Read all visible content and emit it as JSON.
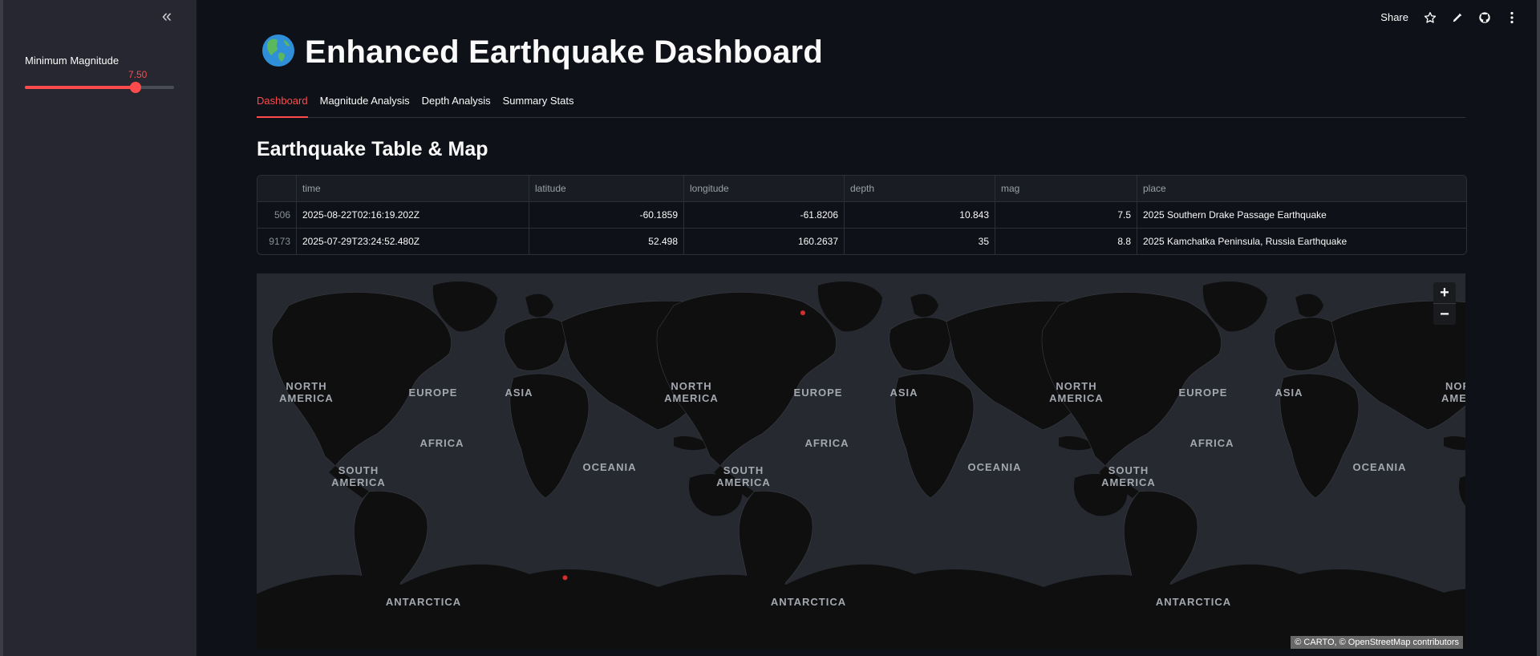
{
  "sidebar": {
    "slider": {
      "label": "Minimum Magnitude",
      "value_text": "7.50",
      "fraction": 0.74
    }
  },
  "header": {
    "share_label": "Share"
  },
  "app": {
    "emoji": "🌎",
    "title": "Enhanced Earthquake Dashboard"
  },
  "tabs": [
    {
      "label": "Dashboard",
      "active": true
    },
    {
      "label": "Magnitude Analysis",
      "active": false
    },
    {
      "label": "Depth Analysis",
      "active": false
    },
    {
      "label": "Summary Stats",
      "active": false
    }
  ],
  "section_title": "Earthquake Table & Map",
  "table": {
    "columns": [
      "",
      "time",
      "latitude",
      "longitude",
      "depth",
      "mag",
      "place"
    ],
    "rows": [
      [
        "506",
        "2025-08-22T02:16:19.202Z",
        "-60.1859",
        "-61.8206",
        "10.843",
        "7.5",
        "2025 Southern Drake Passage Earthquake"
      ],
      [
        "9173",
        "2025-07-29T23:24:52.480Z",
        "52.498",
        "160.2637",
        "35",
        "8.8",
        "2025 Kamchatka Peninsula, Russia Earthquake"
      ]
    ]
  },
  "map": {
    "labels": {
      "north_america_1": "NORTH",
      "north_america_2": "AMERICA",
      "europe": "EUROPE",
      "asia": "ASIA",
      "africa": "AFRICA",
      "south_america_1": "SOUTH",
      "south_america_2": "AMERICA",
      "oceania": "OCEANIA",
      "antarctica": "ANTARCTICA",
      "cut_north": "NORT",
      "cut_america": "AMERI"
    },
    "zoom_in": "+",
    "zoom_out": "−",
    "attribution": "© CARTO, © OpenStreetMap contributors",
    "points": [
      {
        "lat": -60.1859,
        "lon": -61.8206
      },
      {
        "lat": 52.498,
        "lon": 160.2637
      }
    ],
    "colors": {
      "ocean": "#262a30",
      "land": "#0f0f10",
      "point": "#d0312d"
    }
  },
  "colors": {
    "accent": "#ff4b4b",
    "background": "#0e1117",
    "sidebar": "#262730"
  }
}
